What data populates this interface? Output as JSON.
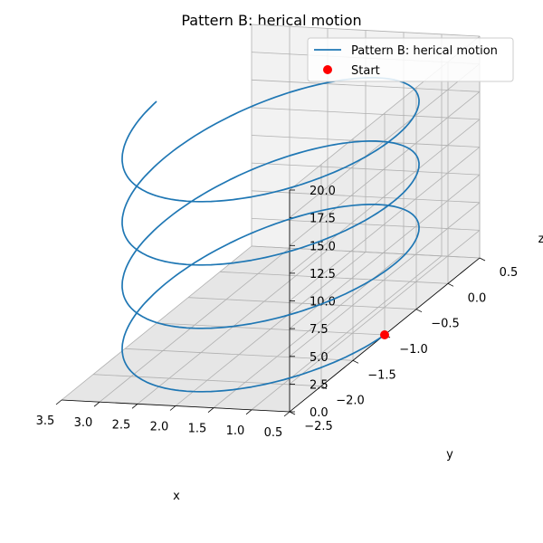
{
  "chart_data": {
    "type": "line3d",
    "title": "Pattern B: herical motion",
    "xlabel": "x",
    "ylabel": "y",
    "zlabel": "z",
    "xlim": [
      0.5,
      3.5
    ],
    "ylim": [
      -2.5,
      0.5
    ],
    "zlim": [
      0.0,
      20.0
    ],
    "x_ticks": [
      "0.5",
      "1.0",
      "1.5",
      "2.0",
      "2.5",
      "3.0",
      "3.5"
    ],
    "y_ticks": [
      "−2.5",
      "−2.0",
      "−1.5",
      "−1.0",
      "−0.5",
      "0.0",
      "0.5"
    ],
    "z_ticks": [
      "0.0",
      "2.5",
      "5.0",
      "7.5",
      "10.0",
      "12.5",
      "15.0",
      "17.5",
      "20.0"
    ],
    "grid": true,
    "legend_position": "top-right",
    "series": [
      {
        "name": "Pattern B: herical motion",
        "kind": "line",
        "color": "#1f77b4",
        "helix": {
          "center_x": 2.0,
          "center_y": -1.0,
          "radius": 1.5,
          "turns": 3.5,
          "z_start": 0.0,
          "z_end": 20.0,
          "start_angle_deg": 180
        }
      },
      {
        "name": "Start",
        "kind": "marker",
        "color": "#ff0000",
        "x": 0.5,
        "y": -1.0,
        "z": 0.0
      }
    ]
  }
}
